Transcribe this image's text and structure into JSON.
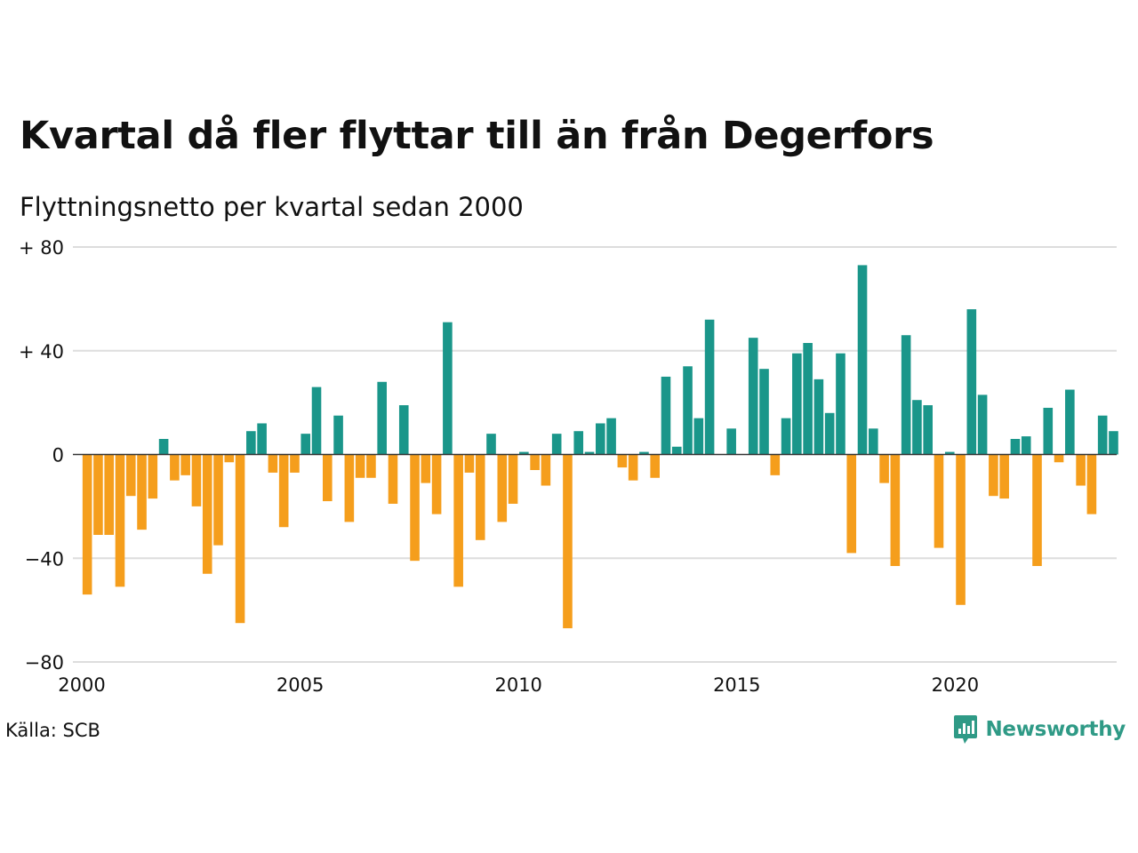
{
  "title": "Kvartal då fler flyttar till än från Degerfors",
  "subtitle": "Flyttningsnetto per kvartal sedan 2000",
  "source": "Källa: SCB",
  "brand": {
    "name": "Newsworthy",
    "icon": "newsworthy-logo-icon"
  },
  "colors": {
    "positive": "#1a968a",
    "negative": "#f59e1c",
    "grid": "#dddddd",
    "baseline": "#333333"
  },
  "chart_data": {
    "type": "bar",
    "x_start_year": 2000,
    "periods_per_year": 4,
    "x_ticks": [
      "2000",
      "2005",
      "2010",
      "2015",
      "2020"
    ],
    "y_ticks": [
      {
        "value": 80,
        "label": "+ 80"
      },
      {
        "value": 40,
        "label": "+ 40"
      },
      {
        "value": 0,
        "label": "0"
      },
      {
        "value": -40,
        "label": "−40"
      },
      {
        "value": -80,
        "label": "−80"
      }
    ],
    "ylim": [
      -80,
      80
    ],
    "grid": true,
    "values": [
      -54,
      -31,
      -31,
      -51,
      -16,
      -29,
      -17,
      6,
      -10,
      -8,
      -20,
      -46,
      -35,
      -3,
      -65,
      9,
      12,
      -7,
      -28,
      -7,
      8,
      26,
      -18,
      15,
      -26,
      -9,
      -9,
      28,
      -19,
      19,
      -41,
      -11,
      -23,
      51,
      -51,
      -7,
      -33,
      8,
      -26,
      -19,
      1,
      -6,
      -12,
      8,
      -67,
      9,
      1,
      12,
      14,
      -5,
      -10,
      1,
      -9,
      30,
      3,
      34,
      14,
      52,
      0,
      10,
      0,
      45,
      33,
      -8,
      14,
      39,
      43,
      29,
      16,
      39,
      -38,
      73,
      10,
      -11,
      -43,
      46,
      21,
      19,
      -36,
      1,
      -58,
      56,
      23,
      -16,
      -17,
      6,
      7,
      -43,
      18,
      -3,
      25,
      -12,
      -23,
      15,
      9
    ]
  }
}
